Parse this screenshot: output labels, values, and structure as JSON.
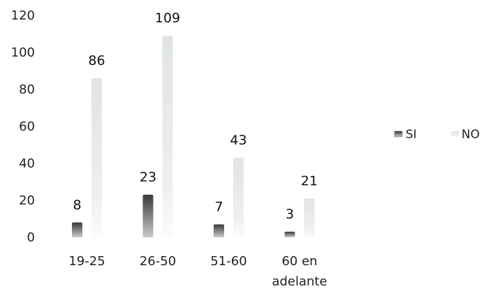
{
  "chart_data": {
    "type": "bar",
    "categories": [
      "19-25",
      "26-50",
      "51-60",
      "60 en adelante"
    ],
    "category_lines": [
      [
        "19-25"
      ],
      [
        "26-50"
      ],
      [
        "51-60"
      ],
      [
        "60 en",
        "adelante"
      ]
    ],
    "series": [
      {
        "name": "SI",
        "values": [
          8,
          23,
          7,
          3
        ],
        "color": "#555555"
      },
      {
        "name": "NO",
        "values": [
          86,
          109,
          43,
          21
        ],
        "color": "#e2e4e4"
      }
    ],
    "y_ticks": [
      0,
      20,
      40,
      60,
      80,
      100,
      120
    ],
    "ylim": [
      0,
      120
    ],
    "title": "",
    "xlabel": "",
    "ylabel": "",
    "grid": false,
    "legend": "right"
  }
}
